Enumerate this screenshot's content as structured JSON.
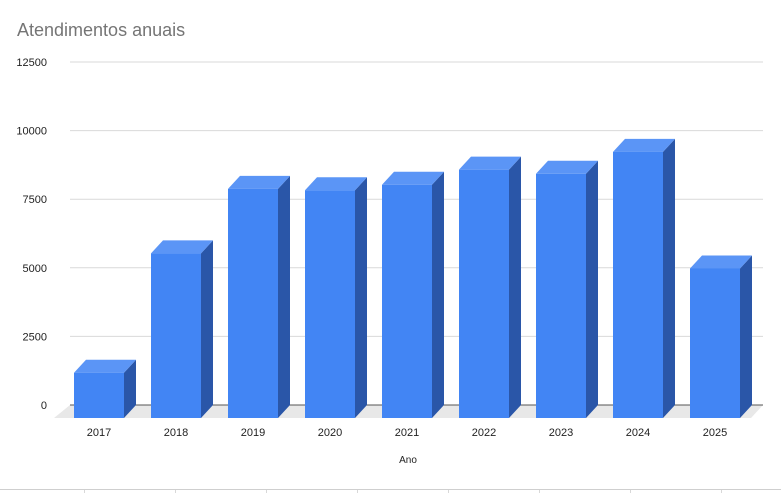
{
  "colors": {
    "bar_front": "#4285f4",
    "bar_top": "#5b95f6",
    "bar_side": "#2a56a8",
    "grid": "#d9d9d9",
    "floor": "#e8e8e8",
    "axis_text": "#222222",
    "title": "#757575"
  },
  "chart_data": {
    "type": "bar",
    "title": "Atendimentos anuais",
    "xlabel": "Ano",
    "ylabel": "",
    "categories": [
      "2017",
      "2018",
      "2019",
      "2020",
      "2021",
      "2022",
      "2023",
      "2024",
      "2025"
    ],
    "values": [
      1650,
      6000,
      8350,
      8300,
      8500,
      9050,
      8900,
      9700,
      5450
    ],
    "ylim": [
      0,
      12500
    ],
    "yticks": [
      "0",
      "2500",
      "5000",
      "7500",
      "10000",
      "12500"
    ],
    "grid": true,
    "legend": "none",
    "style": "3d"
  }
}
